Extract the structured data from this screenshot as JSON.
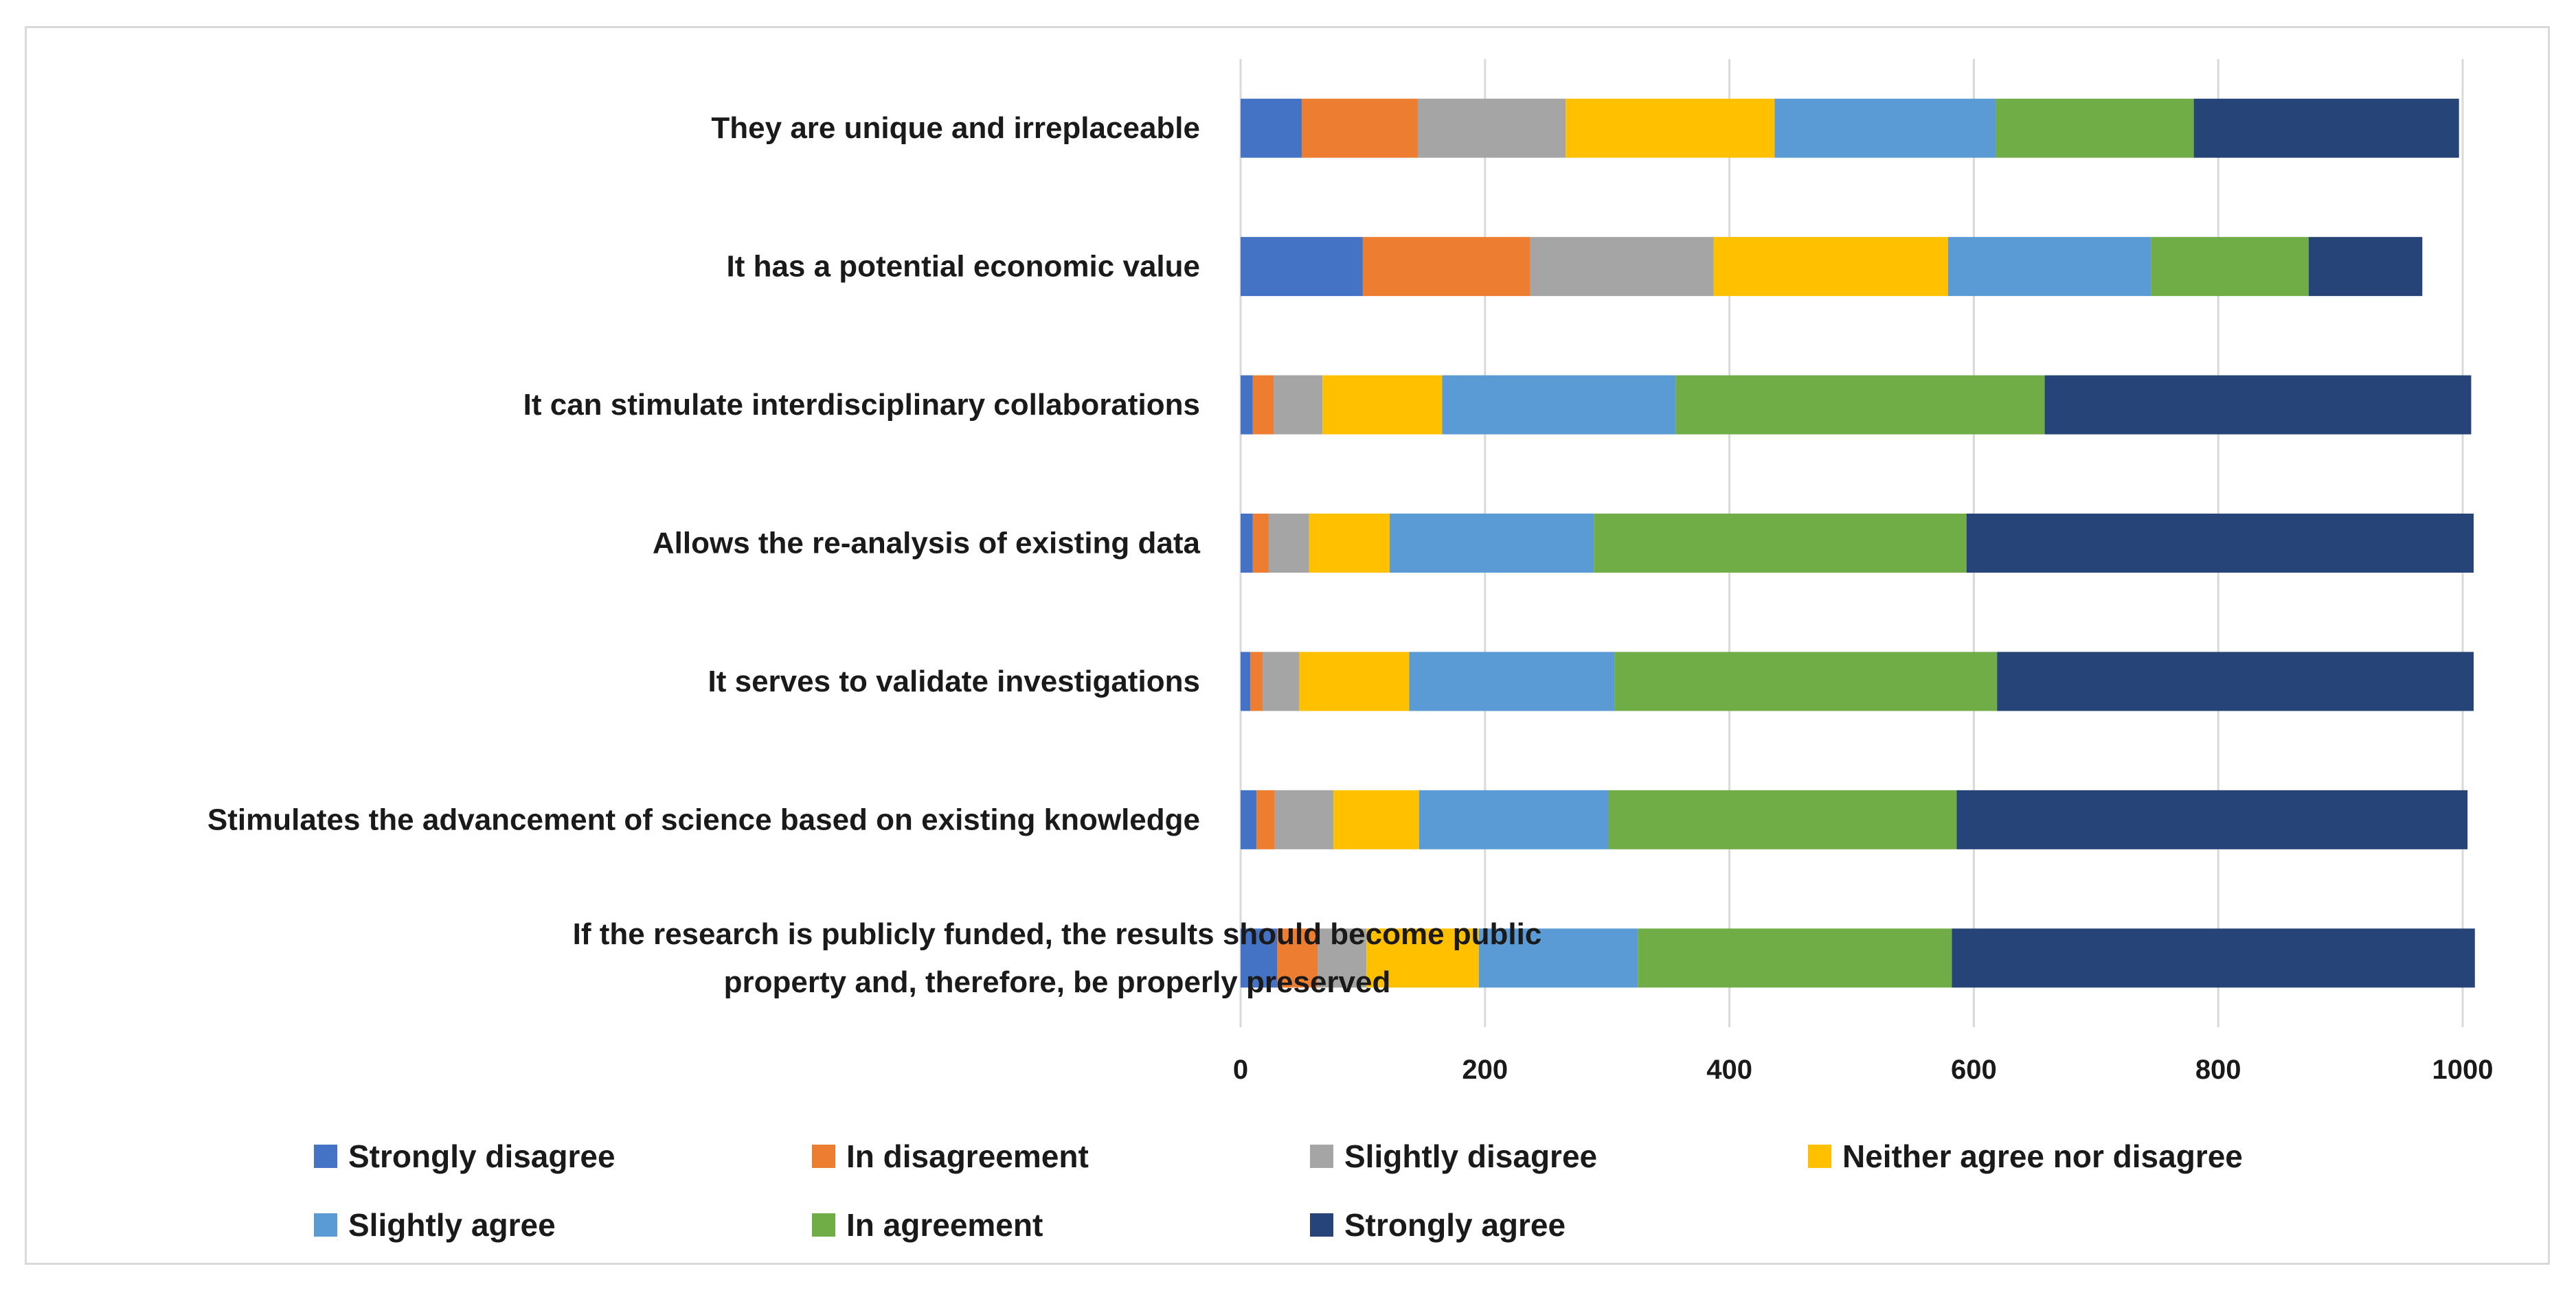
{
  "chart_data": {
    "type": "bar",
    "orientation": "horizontal",
    "stacked": true,
    "title": "",
    "xlabel": "",
    "ylabel": "",
    "xlim": [
      0,
      1000
    ],
    "xticks": [
      0,
      200,
      400,
      600,
      800,
      1000
    ],
    "grid": true,
    "legend_position": "bottom",
    "categories": [
      [
        "They are unique and irreplaceable"
      ],
      [
        "It has a potential economic value"
      ],
      [
        "It can stimulate interdisciplinary collaborations"
      ],
      [
        "Allows the re-analysis of existing data"
      ],
      [
        "It serves to validate investigations"
      ],
      [
        "Stimulates the advancement of science based on existing knowledge"
      ],
      [
        "If the research is publicly funded, the results should become public",
        "property and, therefore, be properly preserved"
      ]
    ],
    "series": [
      {
        "name": "Strongly disagree",
        "color": "#4472c4",
        "values": [
          50,
          100,
          10,
          10,
          8,
          13,
          30
        ]
      },
      {
        "name": "In disagreement",
        "color": "#ed7d31",
        "values": [
          95,
          137,
          17,
          13,
          10,
          15,
          33
        ]
      },
      {
        "name": "Slightly disagree",
        "color": "#a5a5a5",
        "values": [
          121,
          150,
          40,
          33,
          30,
          48,
          40
        ]
      },
      {
        "name": "Neither agree nor disagree",
        "color": "#ffc000",
        "values": [
          171,
          192,
          98,
          66,
          90,
          70,
          92
        ]
      },
      {
        "name": "Slightly agree",
        "color": "#5b9bd5",
        "values": [
          181,
          166,
          191,
          167,
          168,
          155,
          130
        ]
      },
      {
        "name": "In agreement",
        "color": "#70ad47",
        "values": [
          162,
          129,
          302,
          305,
          313,
          285,
          257
        ]
      },
      {
        "name": "Strongly agree",
        "color": "#264478",
        "values": [
          217,
          93,
          349,
          415,
          390,
          418,
          428
        ]
      }
    ]
  }
}
